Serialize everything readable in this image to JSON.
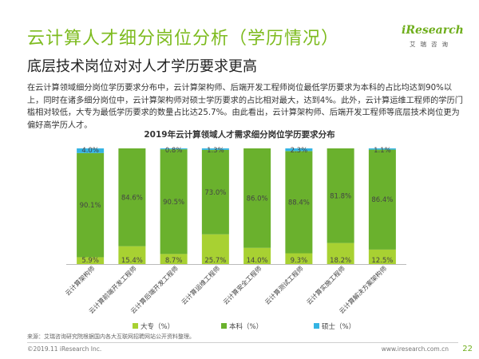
{
  "header": {
    "title": "云计算人才细分岗位分析（学历情况）",
    "subtitle": "底层技术岗位对对人才学历要求更高",
    "logo_text": "iResearch",
    "logo_cn": "艾瑞咨询"
  },
  "paragraph": "在云计算领域细分岗位学历要求分布中，云计算架构师、后端开发工程师岗位最低学历要求为本科的占比均达到90%以上，同时在诸多细分岗位中，云计算架构师对硕士学历要求的占比相对最大，达到4%。此外，云计算运维工程师的学历门槛相对较低，大专为最低学历要求的数量占比达25.7%。由此看出，云计算架构师、后端开发工程师等底层技术岗位更为偏好高学历人才。",
  "chart_data": {
    "type": "bar",
    "stacked": true,
    "percent": true,
    "title": "2019年云计算领域人才需求细分岗位学历要求分布",
    "categories": [
      "云计算架构师",
      "云计算前端开发工程师",
      "云计算后端开发工程师",
      "云计算运维工程师",
      "云计算安全工程师",
      "云计算测试工程师",
      "云计算实施工程师",
      "云计算解决方案架构师"
    ],
    "series": [
      {
        "name": "大专（%）",
        "color": "#a8d132",
        "values": [
          5.9,
          15.4,
          8.7,
          25.7,
          14.0,
          9.3,
          18.2,
          12.5
        ],
        "labels": [
          "5.9%",
          "15.4%",
          "8.7%",
          "25.7%",
          "14.0%",
          "9.3%",
          "18.2%",
          "12.5%"
        ]
      },
      {
        "name": "本科（%）",
        "color": "#6ab12d",
        "values": [
          90.1,
          84.6,
          90.5,
          73.0,
          86.0,
          88.4,
          81.8,
          86.4
        ],
        "labels": [
          "90.1%",
          "84.6%",
          "90.5%",
          "73.0%",
          "86.0%",
          "88.4%",
          "81.8%",
          "86.4%"
        ]
      },
      {
        "name": "硕士（%）",
        "color": "#34b4e3",
        "values": [
          4.0,
          0,
          0.8,
          1.3,
          0,
          2.3,
          0,
          1.1
        ],
        "labels": [
          "4.0%",
          "",
          "0.8%",
          "1.3%",
          "",
          "2.3%",
          "",
          "1.1%"
        ]
      }
    ],
    "ylim": [
      0,
      100
    ],
    "legend_position": "bottom"
  },
  "footer": {
    "source": "来源：艾瑞咨询研究院根据国内各大互联网招聘网站公开资料整理。",
    "copyright": "©2019.11 iResearch Inc.",
    "website": "www.iresearch.com.cn",
    "page": "22"
  }
}
